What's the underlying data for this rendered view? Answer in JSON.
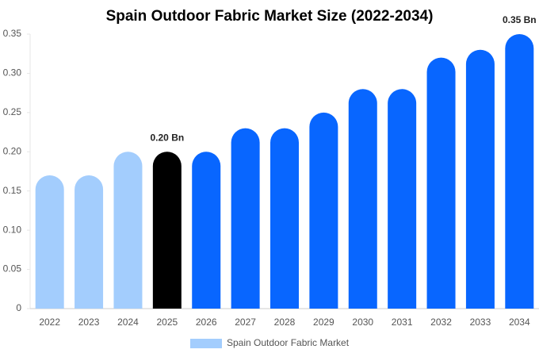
{
  "chart_data": {
    "type": "bar",
    "title": "Spain Outdoor Fabric Market Size (2022-2034)",
    "categories": [
      "2022",
      "2023",
      "2024",
      "2025",
      "2026",
      "2027",
      "2028",
      "2029",
      "2030",
      "2031",
      "2032",
      "2033",
      "2034"
    ],
    "series": [
      {
        "name": "Spain Outdoor Fabric Market",
        "color": "#a3cdfd",
        "values": [
          0.17,
          0.17,
          0.2,
          0.2,
          0.2,
          0.23,
          0.23,
          0.25,
          0.28,
          0.28,
          0.32,
          0.33,
          0.35
        ],
        "value_labels": [
          null,
          null,
          null,
          "0.20 Bn",
          null,
          null,
          null,
          null,
          null,
          null,
          null,
          null,
          "0.35 Bn"
        ],
        "bar_colors": [
          "#a3cdfd",
          "#a3cdfd",
          "#a3cdfd",
          "#000000",
          "#0866ff",
          "#0866ff",
          "#0866ff",
          "#0866ff",
          "#0866ff",
          "#0866ff",
          "#0866ff",
          "#0866ff",
          "#0866ff"
        ]
      }
    ],
    "ylim": [
      0,
      0.35
    ],
    "yticks": [
      0,
      0.05,
      {
        "value": 0.1,
        "label": "0.10"
      },
      0.15,
      {
        "value": 0.2,
        "label": "0.20"
      },
      0.25,
      {
        "value": 0.3,
        "label": "0.30"
      },
      0.35
    ],
    "grid": false,
    "legend": "bottom"
  }
}
